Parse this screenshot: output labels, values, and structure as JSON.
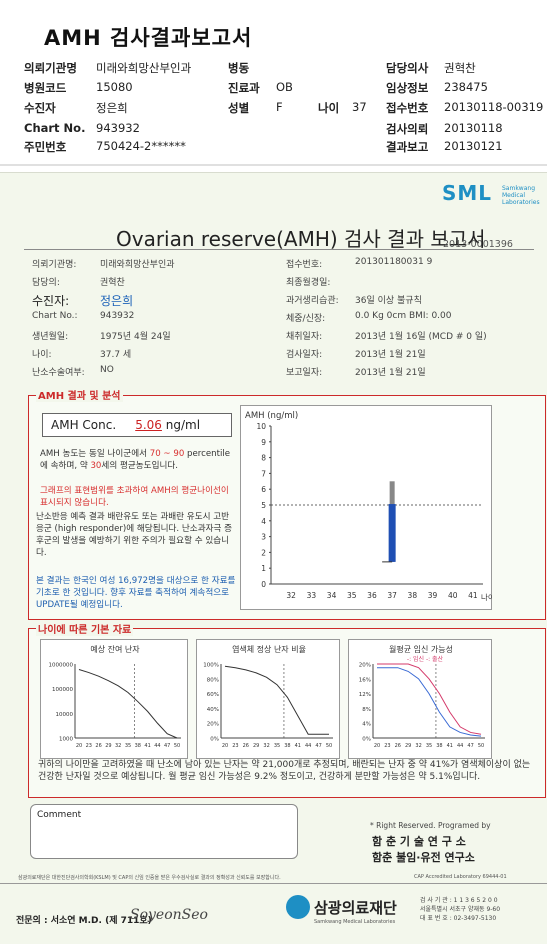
{
  "header": {
    "title": "AMH 검사결과보고서",
    "rows": [
      {
        "l1": "의뢰기관명",
        "v1": "미래와희망산부인과",
        "l2": "병동",
        "v2": "",
        "l3": "담당의사",
        "v3": "권혁찬"
      },
      {
        "l1": "병원코드",
        "v1": "15080",
        "l2": "진료과",
        "v2": "OB",
        "l3": "임상정보",
        "v3": "238475"
      },
      {
        "l1": "수진자",
        "v1": "정은희",
        "l2": "성별",
        "v2": "F",
        "l2b": "나이",
        "v2b": "37",
        "l3": "접수번호",
        "v3": "20130118-00319"
      },
      {
        "l1": "Chart No.",
        "v1": "943932",
        "l2": "",
        "v2": "",
        "l3": "검사의뢰",
        "v3": "20130118"
      },
      {
        "l1": "주민번호",
        "v1": "750424-2******",
        "l2": "",
        "v2": "",
        "l3": "결과보고",
        "v3": "20130121"
      }
    ]
  },
  "report": {
    "logo": "SML",
    "logo_sub": "Samkwang Medical Laboratories",
    "title": "Ovarian reserve(AMH) 검사 결과 보고서",
    "number": "2013-0001396",
    "left_fields": [
      {
        "label": "의뢰기관명:",
        "value": "미래와희망산부인과"
      },
      {
        "label": "담당의:",
        "value": "권혁찬"
      },
      {
        "label": "수진자:",
        "value": "정은희"
      },
      {
        "label": "Chart No.:",
        "value": "943932"
      },
      {
        "label": "생년월일:",
        "value": "1975년 4월 24일"
      },
      {
        "label": "나이:",
        "value": "37.7 세"
      },
      {
        "label": "난소수술여부:",
        "value": "NO"
      }
    ],
    "right_fields": [
      {
        "label": "접수번호:",
        "value": "201301180031 9"
      },
      {
        "label": "최종월경일:",
        "value": ""
      },
      {
        "label": "과거생리습관:",
        "value": "36일 이상 불규칙"
      },
      {
        "label": "체중/신장:",
        "value": "0.0 Kg       0cm    BMI:   0.00"
      },
      {
        "label": "채취일자:",
        "value": "2013년 1월 16일  (MCD #  0 일)"
      },
      {
        "label": "검사일자:",
        "value": "2013년 1월 21일"
      },
      {
        "label": "보고일자:",
        "value": "2013년 1월 21일"
      }
    ],
    "amh_section_label": "AMH 결과 및 분석",
    "amh_conc_label": "AMH Conc.",
    "amh_conc_value": "5.06",
    "amh_conc_unit": "ng/ml",
    "analysis_p1a": "AMH 농도는 동일 나이군에서",
    "analysis_p1_range": "70 ~ 90",
    "analysis_p1b": "percentile에 속하며, 약",
    "analysis_p1_age": "30",
    "analysis_p1c": "세의 평균농도입니다.",
    "analysis_p2": "그래프의 표현범위를 초과하여 AMH의 평균나이선이 표시되지 않습니다.",
    "analysis_p3": "난소반응 예측 결과 배란유도 또는 과배란 유도시 고반응군 (high responder)에 해당됩니다. 난소과자극 증후군의 발생을 예방하기 위한 주의가 필요할 수 있습니다.",
    "analysis_p4": "본 결과는 한국인 여성 16,972명을 대상으로 한 자료를 기초로 한 것입니다. 향후 자료를 축적하여 계속적으로 UPDATE될 예정입니다.",
    "basic_section_label": "나이에 따른 기본 자료",
    "small_chart_titles": [
      "예상 잔여 난자",
      "염색체 정상 난자 비율",
      "월평균 임신 가능성"
    ],
    "small_chart3_legend": "-: 임신 -: 출산",
    "footer_text": "귀하의 나이만을 고려하였을 때 난소에 남아 있는 난자는 약 21,000개로 추정되며, 배란되는 난자 중 약 41%가 염색체이상이 없는 건강한 난자일 것으로 예상됩니다. 월 평균 임신 가능성은 9.2% 정도이고, 건강하게 분만할 가능성은 약 5.1%입니다.",
    "comment_label": "Comment",
    "rights": "* Right Reserved. Programed by",
    "inst1": "함 춘 기 술 연 구 소",
    "inst2": "함춘 불임·유전 연구소",
    "cert_text": "삼광의료재단은 대한진단검사의학회(KSLM) 및 CAP의 신임 인증을 받은 우수검사실로 결과의 정확성과 신뢰도를 보장합니다.",
    "cap_text": "CAP Accredited Laboratory  69444-01",
    "specialist": "전문의 : 서소연 M.D. (제 711호)",
    "signature": "SoyeonSeo",
    "foundation": "삼광의료재단",
    "foundation_sub": "Samkwang Medical Laboratories",
    "contact1": "검 사 기 관 : 1 1 3 6 5 2 0 0",
    "contact2": "서울특별시 서초구 양재동 9-60",
    "contact3": "대 표 번 호 : 02-3497-5130"
  },
  "chart_data": [
    {
      "type": "bar",
      "title": "",
      "ylabel": "AMH (ng/ml)",
      "xlabel": "나이",
      "x": [
        32,
        33,
        34,
        35,
        36,
        37,
        38,
        39,
        40,
        41
      ],
      "ylim": [
        0,
        10
      ],
      "reference_line": 5.0,
      "series": [
        {
          "name": "",
          "x": 37,
          "value": 5.06,
          "range": [
            1.4,
            6.5
          ],
          "color": "#1f4fb4"
        }
      ]
    },
    {
      "type": "line",
      "title": "예상 잔여 난자",
      "x": [
        20,
        23,
        26,
        29,
        32,
        35,
        38,
        41,
        44,
        47,
        50
      ],
      "y_ticks": [
        "1000000",
        "100000",
        "10000",
        "1000"
      ],
      "series": [
        {
          "name": "",
          "values": [
            600000,
            450000,
            320000,
            210000,
            130000,
            70000,
            30000,
            12000,
            4000,
            1500,
            1000
          ]
        }
      ]
    },
    {
      "type": "line",
      "title": "염색체 정상 난자 비율",
      "x": [
        20,
        23,
        26,
        29,
        32,
        35,
        38,
        41,
        44,
        47,
        50
      ],
      "y_ticks": [
        "100%",
        "80%",
        "60%",
        "40%",
        "20%",
        "0%"
      ],
      "series": [
        {
          "name": "",
          "values": [
            97,
            95,
            92,
            88,
            82,
            72,
            55,
            30,
            5,
            5,
            5
          ]
        }
      ]
    },
    {
      "type": "line",
      "title": "월평균 임신 가능성",
      "x": [
        20,
        23,
        26,
        29,
        32,
        35,
        38,
        41,
        44,
        47,
        50
      ],
      "y_ticks": [
        "20%",
        "16%",
        "12%",
        "8%",
        "4%",
        "0%"
      ],
      "series": [
        {
          "name": "임신",
          "color": "#d43a6a",
          "values": [
            20,
            20,
            20,
            20,
            19,
            16,
            12,
            7,
            3,
            1.5,
            1
          ]
        },
        {
          "name": "출산",
          "color": "#3a6ad4",
          "values": [
            19,
            19,
            19,
            18,
            16,
            12,
            7,
            3,
            1.5,
            0.8,
            0.5
          ]
        }
      ]
    }
  ],
  "colors": {
    "accent_red": "#cc2a2a",
    "accent_blue": "#1f4fb4",
    "logo": "#1e8fc4"
  }
}
